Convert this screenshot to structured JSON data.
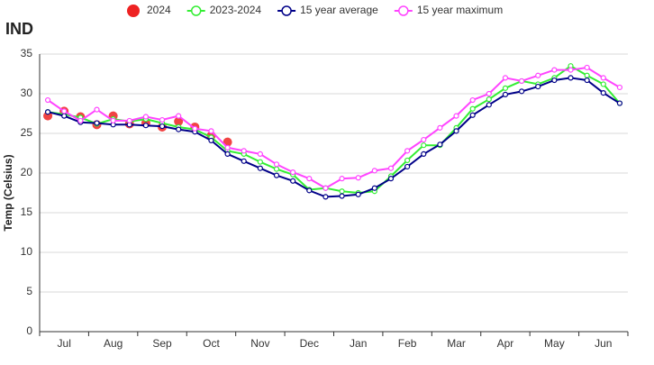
{
  "chart_data": {
    "type": "line",
    "title": "IND",
    "ylabel": "Temp (Celsius)",
    "categories": [
      null,
      "Jul",
      null,
      null,
      "Aug",
      null,
      null,
      "Sep",
      null,
      null,
      "Oct",
      null,
      null,
      "Nov",
      null,
      null,
      "Dec",
      null,
      null,
      "Jan",
      null,
      null,
      "Feb",
      null,
      null,
      "Mar",
      null,
      null,
      "Apr",
      null,
      null,
      "May",
      null,
      null,
      "Jun",
      null
    ],
    "ylim": [
      0,
      35
    ],
    "yticks": [
      0,
      5,
      10,
      15,
      20,
      25,
      30,
      35
    ],
    "grid": true,
    "legend": "top",
    "series": [
      {
        "name": "2024",
        "color": "#ee2222",
        "show_line": false,
        "values": [
          27.2,
          27.8,
          27.1,
          26.1,
          27.2,
          26.2,
          26.3,
          25.8,
          26.5,
          25.8,
          24.7,
          23.9,
          null,
          null,
          null,
          null,
          null,
          null,
          null,
          null,
          null,
          null,
          null,
          null,
          null,
          null,
          null,
          null,
          null,
          null,
          null,
          null,
          null,
          null,
          null,
          null
        ]
      },
      {
        "name": "2023-2024",
        "color": "#33ee33",
        "show_line": true,
        "values": [
          27.7,
          27.4,
          27.0,
          26.2,
          26.8,
          26.5,
          26.8,
          26.3,
          25.8,
          25.5,
          24.5,
          22.8,
          22.4,
          21.4,
          20.5,
          19.8,
          17.9,
          18.1,
          17.7,
          17.5,
          17.7,
          19.6,
          21.6,
          23.5,
          23.5,
          25.7,
          28.1,
          29.3,
          30.7,
          31.6,
          31.2,
          32.0,
          33.5,
          32.3,
          31.2,
          28.8
        ]
      },
      {
        "name": "15 year average",
        "color": "#000088",
        "show_line": true,
        "values": [
          27.7,
          27.2,
          26.4,
          26.3,
          26.1,
          26.1,
          26.0,
          25.9,
          25.5,
          25.2,
          24.1,
          22.4,
          21.5,
          20.6,
          19.7,
          19.0,
          17.8,
          17.0,
          17.1,
          17.3,
          18.1,
          19.3,
          20.8,
          22.4,
          23.6,
          25.3,
          27.3,
          28.6,
          29.9,
          30.3,
          30.9,
          31.7,
          32.0,
          31.7,
          30.1,
          28.8
        ]
      },
      {
        "name": "15 year maximum",
        "color": "#ff44ff",
        "show_line": true,
        "values": [
          29.2,
          27.8,
          26.6,
          28.0,
          26.6,
          26.6,
          27.1,
          26.7,
          27.2,
          25.6,
          25.3,
          23.2,
          22.8,
          22.4,
          21.1,
          20.1,
          19.3,
          18.1,
          19.3,
          19.4,
          20.3,
          20.6,
          22.8,
          24.2,
          25.7,
          27.2,
          29.2,
          30.0,
          32.0,
          31.6,
          32.3,
          33.0,
          33.0,
          33.3,
          32.0,
          30.8
        ]
      }
    ]
  }
}
